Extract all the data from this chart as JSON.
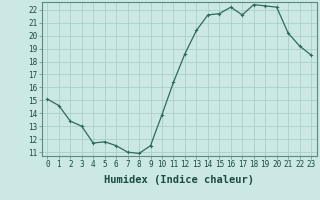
{
  "xlabel": "Humidex (Indice chaleur)",
  "x": [
    0,
    1,
    2,
    3,
    4,
    5,
    6,
    7,
    8,
    9,
    10,
    11,
    12,
    13,
    14,
    15,
    16,
    17,
    18,
    19,
    20,
    21,
    22,
    23
  ],
  "y": [
    15.1,
    14.6,
    13.4,
    13.0,
    11.7,
    11.8,
    11.5,
    11.0,
    10.9,
    11.5,
    13.9,
    16.4,
    18.6,
    20.4,
    21.6,
    21.7,
    22.2,
    21.6,
    22.4,
    22.3,
    22.2,
    20.2,
    19.2,
    18.5
  ],
  "line_color": "#2e6b5e",
  "marker": "P",
  "marker_size": 2.5,
  "bg_color": "#cce8e4",
  "grid_color": "#aacfcb",
  "ylim": [
    10.7,
    22.6
  ],
  "yticks": [
    11,
    12,
    13,
    14,
    15,
    16,
    17,
    18,
    19,
    20,
    21,
    22
  ],
  "xticks": [
    0,
    1,
    2,
    3,
    4,
    5,
    6,
    7,
    8,
    9,
    10,
    11,
    12,
    13,
    14,
    15,
    16,
    17,
    18,
    19,
    20,
    21,
    22,
    23
  ],
  "tick_fontsize": 5.5,
  "label_fontsize": 7.5
}
